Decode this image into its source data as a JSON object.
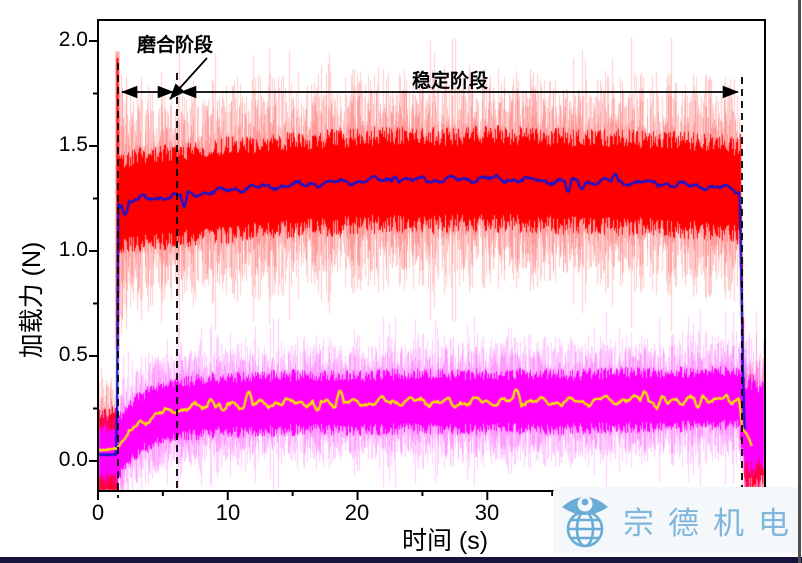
{
  "chart_data": {
    "type": "line",
    "title": "",
    "xlabel": "时间 (s)",
    "ylabel": "加载力 (N)",
    "xlim": [
      0,
      51.4
    ],
    "ylim": [
      -0.143,
      2.1
    ],
    "grid": false,
    "legend": "none",
    "x_ticks": [
      0,
      5,
      10,
      15,
      20,
      25,
      30,
      35,
      40,
      45,
      50
    ],
    "x_tick_labels": [
      "0",
      "10",
      "20",
      "30"
    ],
    "x_tick_label_values": [
      0,
      10,
      20,
      30
    ],
    "y_ticks": [
      0,
      0.25,
      0.5,
      0.75,
      1.0,
      1.25,
      1.5,
      1.75,
      2.0
    ],
    "y_tick_labels": [
      "0.0",
      "0.5",
      "1.0",
      "1.5",
      "2.0"
    ],
    "y_tick_label_values": [
      0,
      0.5,
      1.0,
      1.5,
      2.0
    ],
    "phases": {
      "runin": {
        "label": "磨合阶段",
        "start_s": 1.5,
        "end_s": 6.1
      },
      "stable": {
        "label": "稳定阶段",
        "start_s": 6.1,
        "end_s": 49.6
      }
    },
    "events": {
      "start_s": 1.5,
      "end_s": 49.6,
      "start_spike_peak": 1.92
    },
    "series": [
      {
        "name": "loading-force-raw",
        "type": "noise-band",
        "color": "#ff0000",
        "pre": {
          "center": 0.03,
          "solid": 0.19,
          "light": 0.3
        },
        "mid": {
          "solid": 0.21,
          "light": 0.4
        },
        "post": {
          "center": 0.09,
          "solid": 0.2,
          "light": 0.32
        }
      },
      {
        "name": "loading-force-mean",
        "type": "line",
        "color": "#1414d2",
        "keypoints": {
          "t": [
            0,
            1.45,
            1.55,
            3,
            6,
            10,
            14,
            18,
            22,
            26,
            30,
            34,
            38,
            42,
            46,
            48.5,
            49.45,
            49.7,
            49.87
          ],
          "v": [
            0.03,
            0.03,
            1.22,
            1.245,
            1.26,
            1.29,
            1.31,
            1.325,
            1.34,
            1.335,
            1.345,
            1.335,
            1.33,
            1.325,
            1.31,
            1.3,
            1.28,
            0.45,
            0.05
          ]
        }
      },
      {
        "name": "friction-force-raw",
        "type": "noise-band",
        "color": "#ff00ff",
        "pre": {
          "center": 0.04,
          "solid": 0.12,
          "light": 0.2
        },
        "mid": {
          "solid": 0.13,
          "light": 0.24
        },
        "post": {
          "center": 0.17,
          "solid": 0.2,
          "light": 0.33
        }
      },
      {
        "name": "friction-force-mean",
        "type": "line",
        "color": "#ffe600",
        "keypoints": {
          "t": [
            0,
            1.5,
            2.2,
            3.2,
            4.5,
            6,
            9,
            12,
            16,
            20,
            24,
            28,
            32,
            36,
            40,
            44,
            47,
            49.4,
            49.65,
            50.0,
            50.4
          ],
          "v": [
            0.05,
            0.06,
            0.12,
            0.18,
            0.22,
            0.245,
            0.265,
            0.27,
            0.28,
            0.275,
            0.285,
            0.28,
            0.285,
            0.28,
            0.29,
            0.29,
            0.3,
            0.3,
            0.15,
            0.13,
            0.07
          ]
        }
      }
    ],
    "axis_color": "#000000",
    "dashed_line_color": "#000000"
  },
  "watermark": {
    "text": "宗德机电",
    "icon": "eye-globe-icon",
    "text_color": "#7fb6dc",
    "icon_color": "#69acd6",
    "background": "#f5f8fa"
  },
  "frame": {
    "bottom_bar_color": "#14143c",
    "right_border_color": "#4f4f4f"
  }
}
